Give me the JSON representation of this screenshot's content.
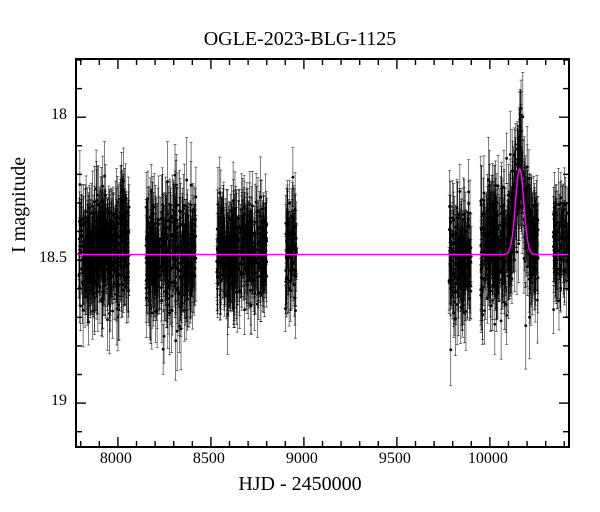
{
  "chart": {
    "type": "scatter-lightcurve",
    "title": "OGLE-2023-BLG-1125",
    "xlabel": "HJD - 2450000",
    "ylabel": "I magnitude",
    "xlim": [
      7780,
      10420
    ],
    "ylim": [
      19.15,
      17.8
    ],
    "y_inverted": true,
    "xticks": [
      8000,
      8500,
      9000,
      9500,
      10000
    ],
    "yticks": [
      18,
      18.5,
      19
    ],
    "xtick_minor_step": 100,
    "ytick_minor_step": 0.1,
    "tick_len_major": 9,
    "tick_len_minor": 5,
    "background_color": "#ffffff",
    "axis_color": "#000000",
    "title_fontsize": 20,
    "label_fontsize": 20,
    "tick_fontsize": 16,
    "data_color": "#000000",
    "data_marker": "circle",
    "data_marker_size": 1.4,
    "errorbar_width": 0.6,
    "model_line_color": "#ff00ff",
    "model_line_width": 1.4,
    "model_baseline": 18.48,
    "model_peak_hjd": 10160,
    "model_peak_mag": 18.18,
    "model_peak_width": 45,
    "data_clusters": [
      {
        "x_start": 7790,
        "x_end": 8060,
        "n": 420,
        "y_center": 18.47,
        "y_scatter": 0.085,
        "err": 0.11
      },
      {
        "x_start": 8150,
        "x_end": 8420,
        "n": 380,
        "y_center": 18.48,
        "y_scatter": 0.095,
        "err": 0.12
      },
      {
        "x_start": 8530,
        "x_end": 8800,
        "n": 370,
        "y_center": 18.48,
        "y_scatter": 0.085,
        "err": 0.11
      },
      {
        "x_start": 8900,
        "x_end": 8960,
        "n": 80,
        "y_center": 18.46,
        "y_scatter": 0.09,
        "err": 0.11
      },
      {
        "x_start": 9780,
        "x_end": 9900,
        "n": 170,
        "y_center": 18.48,
        "y_scatter": 0.085,
        "err": 0.11
      },
      {
        "x_start": 9950,
        "x_end": 10260,
        "n": 430,
        "y_center": 18.45,
        "y_scatter": 0.1,
        "err": 0.12
      },
      {
        "x_start": 10340,
        "x_end": 10420,
        "n": 90,
        "y_center": 18.45,
        "y_scatter": 0.08,
        "err": 0.1
      }
    ]
  }
}
